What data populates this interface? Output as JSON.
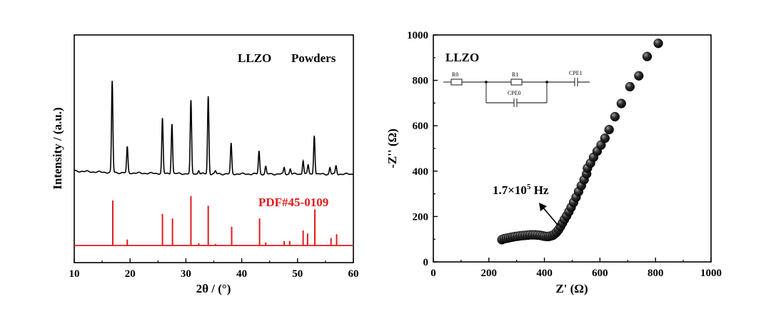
{
  "chart_data": [
    {
      "type": "line",
      "xlabel": "2θ / (°)",
      "ylabel": "Intensity / (a.u.)",
      "xlim": [
        10,
        60
      ],
      "xticks": [
        "10",
        "20",
        "30",
        "40",
        "50",
        "60"
      ],
      "annotations": {
        "sample": "LLZO",
        "sample_form": "Powders",
        "reference": "PDF#45-0109"
      },
      "colors": {
        "measured": "#000000",
        "reference": "#e31a1c"
      },
      "series": [
        {
          "kind": "measured-pattern",
          "peaks": [
            {
              "x": 16.8,
              "h": 1.0
            },
            {
              "x": 19.5,
              "h": 0.28
            },
            {
              "x": 25.8,
              "h": 0.6
            },
            {
              "x": 27.5,
              "h": 0.55
            },
            {
              "x": 30.9,
              "h": 0.8
            },
            {
              "x": 32.3,
              "h": 0.04
            },
            {
              "x": 34.0,
              "h": 0.85
            },
            {
              "x": 35.3,
              "h": 0.03
            },
            {
              "x": 38.1,
              "h": 0.33
            },
            {
              "x": 43.1,
              "h": 0.25
            },
            {
              "x": 44.3,
              "h": 0.08
            },
            {
              "x": 47.6,
              "h": 0.07
            },
            {
              "x": 48.7,
              "h": 0.06
            },
            {
              "x": 51.0,
              "h": 0.15
            },
            {
              "x": 51.9,
              "h": 0.1
            },
            {
              "x": 53.0,
              "h": 0.43
            },
            {
              "x": 55.8,
              "h": 0.07
            },
            {
              "x": 56.9,
              "h": 0.09
            }
          ]
        },
        {
          "kind": "reference-sticks",
          "sticks": [
            {
              "x": 16.9,
              "h": 0.6
            },
            {
              "x": 19.5,
              "h": 0.08
            },
            {
              "x": 25.8,
              "h": 0.42
            },
            {
              "x": 27.6,
              "h": 0.36
            },
            {
              "x": 30.9,
              "h": 0.66
            },
            {
              "x": 32.3,
              "h": 0.03
            },
            {
              "x": 34.0,
              "h": 0.53
            },
            {
              "x": 35.3,
              "h": 0.02
            },
            {
              "x": 38.2,
              "h": 0.25
            },
            {
              "x": 43.2,
              "h": 0.36
            },
            {
              "x": 44.3,
              "h": 0.04
            },
            {
              "x": 47.6,
              "h": 0.06
            },
            {
              "x": 48.6,
              "h": 0.06
            },
            {
              "x": 51.0,
              "h": 0.2
            },
            {
              "x": 51.8,
              "h": 0.16
            },
            {
              "x": 53.1,
              "h": 0.48
            },
            {
              "x": 56.0,
              "h": 0.1
            },
            {
              "x": 57.0,
              "h": 0.15
            }
          ]
        }
      ]
    },
    {
      "type": "scatter",
      "xlabel": "Z' (Ω)",
      "ylabel": "-Z'' (Ω)",
      "xlim": [
        0,
        1000
      ],
      "ylim": [
        0,
        1000
      ],
      "xticks": [
        "0",
        "200",
        "400",
        "600",
        "800",
        "1000"
      ],
      "yticks": [
        "0",
        "200",
        "400",
        "600",
        "800",
        "1000"
      ],
      "annotations": {
        "sample": "LLZO",
        "frequency_base": "1.7×10",
        "frequency_exp": "5",
        "frequency_unit": " Hz"
      },
      "circuit": {
        "elements": [
          "R0",
          "R1",
          "CPE0",
          "CPE1"
        ]
      },
      "series": [
        {
          "kind": "nyquist",
          "points": [
            [
              247,
              98
            ],
            [
              255,
              102
            ],
            [
              263,
              104
            ],
            [
              271,
              106
            ],
            [
              279,
              108
            ],
            [
              287,
              110
            ],
            [
              295,
              112
            ],
            [
              304,
              113
            ],
            [
              313,
              115
            ],
            [
              322,
              116
            ],
            [
              331,
              117
            ],
            [
              340,
              118
            ],
            [
              349,
              119
            ],
            [
              358,
              119
            ],
            [
              367,
              119
            ],
            [
              376,
              118
            ],
            [
              385,
              117
            ],
            [
              393,
              115
            ],
            [
              400,
              113
            ],
            [
              408,
              112
            ],
            [
              415,
              112
            ],
            [
              422,
              114
            ],
            [
              430,
              117
            ],
            [
              437,
              123
            ],
            [
              444,
              131
            ],
            [
              451,
              142
            ],
            [
              458,
              156
            ],
            [
              465,
              171
            ],
            [
              472,
              187
            ],
            [
              480,
              203
            ],
            [
              488,
              221
            ],
            [
              496,
              240
            ],
            [
              505,
              262
            ],
            [
              514,
              285
            ],
            [
              523,
              310
            ],
            [
              533,
              336
            ],
            [
              543,
              362
            ],
            [
              552,
              388
            ],
            [
              555,
              413
            ],
            [
              566,
              435
            ],
            [
              577,
              461
            ],
            [
              590,
              488
            ],
            [
              604,
              515
            ],
            [
              618,
              545
            ],
            [
              633,
              583
            ],
            [
              654,
              640
            ],
            [
              677,
              698
            ],
            [
              708,
              772
            ],
            [
              740,
              820
            ],
            [
              770,
              905
            ],
            [
              810,
              963
            ]
          ]
        }
      ]
    }
  ]
}
